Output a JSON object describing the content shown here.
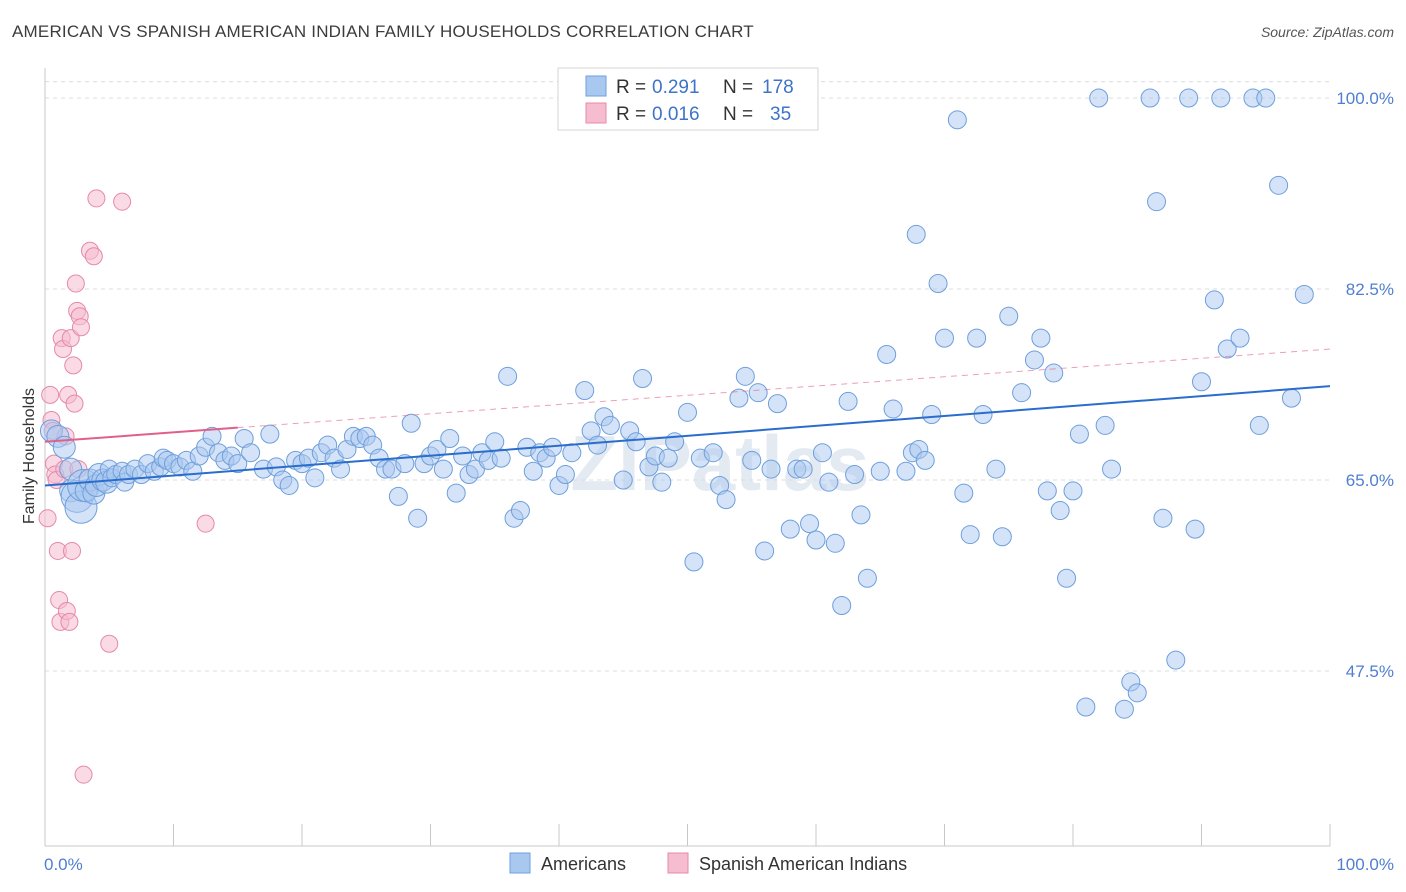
{
  "header": {
    "title": "AMERICAN VS SPANISH AMERICAN INDIAN FAMILY HOUSEHOLDS CORRELATION CHART",
    "source": "Source: ZipAtlas.com"
  },
  "legend": {
    "r_label": "R =",
    "n_label": "N =",
    "rows": [
      {
        "r": "0.291",
        "n": "178"
      },
      {
        "r": "0.016",
        "n": "35"
      }
    ]
  },
  "watermark": "ZIPatlas",
  "chart_data": {
    "type": "scatter",
    "xlabel": "",
    "ylabel": "Family Households",
    "xlim": [
      0,
      100
    ],
    "ylim": [
      33,
      102
    ],
    "x_tick_labels": [
      "0.0%",
      "100.0%"
    ],
    "y_ticks": [
      {
        "value": 100.0,
        "label": "100.0%"
      },
      {
        "value": 82.5,
        "label": "82.5%"
      },
      {
        "value": 65.0,
        "label": "65.0%"
      },
      {
        "value": 47.5,
        "label": "47.5%"
      }
    ],
    "grid": true,
    "legend_position": "top-center",
    "colors": {
      "americans_fill": "#a9c8f0",
      "americans_stroke": "#6e9fdc",
      "americans_line": "#2a6dcc",
      "sai_fill": "#f6bcd0",
      "sai_stroke": "#e58aa8",
      "sai_line": "#e0608a"
    },
    "series": [
      {
        "name": "Americans",
        "trend": [
          [
            0,
            64.5
          ],
          [
            100,
            73.6
          ]
        ],
        "points": [
          [
            0.5,
            69.5
          ],
          [
            1,
            69
          ],
          [
            1.5,
            68
          ],
          [
            2,
            64
          ],
          [
            2,
            66
          ],
          [
            2.5,
            63.5
          ],
          [
            2.8,
            62.5
          ],
          [
            3,
            64.5
          ],
          [
            3.2,
            64
          ],
          [
            3.5,
            65
          ],
          [
            3.8,
            63.8
          ],
          [
            4,
            64.5
          ],
          [
            4.2,
            65.5
          ],
          [
            4.5,
            65
          ],
          [
            4.8,
            64.8
          ],
          [
            5,
            66
          ],
          [
            5.2,
            65.2
          ],
          [
            5.5,
            65.5
          ],
          [
            6,
            65.8
          ],
          [
            6.2,
            64.8
          ],
          [
            6.5,
            65.5
          ],
          [
            7,
            66
          ],
          [
            7.5,
            65.5
          ],
          [
            8,
            66.5
          ],
          [
            8.5,
            65.8
          ],
          [
            9,
            66.2
          ],
          [
            9.2,
            67
          ],
          [
            9.5,
            66.8
          ],
          [
            10,
            66.5
          ],
          [
            10.5,
            66.2
          ],
          [
            11,
            66.8
          ],
          [
            11.5,
            65.8
          ],
          [
            12,
            67.2
          ],
          [
            12.5,
            68
          ],
          [
            13,
            69
          ],
          [
            13.5,
            67.5
          ],
          [
            14,
            66.8
          ],
          [
            14.5,
            67.2
          ],
          [
            15,
            66.5
          ],
          [
            15.5,
            68.8
          ],
          [
            16,
            67.5
          ],
          [
            17,
            66
          ],
          [
            17.5,
            69.2
          ],
          [
            18,
            66.2
          ],
          [
            18.5,
            65
          ],
          [
            19,
            64.5
          ],
          [
            19.5,
            66.8
          ],
          [
            20,
            66.5
          ],
          [
            20.5,
            67
          ],
          [
            21,
            65.2
          ],
          [
            21.5,
            67.5
          ],
          [
            22,
            68.2
          ],
          [
            22.5,
            67
          ],
          [
            23,
            66
          ],
          [
            23.5,
            67.8
          ],
          [
            24,
            69
          ],
          [
            24.5,
            68.8
          ],
          [
            25,
            69
          ],
          [
            25.5,
            68.2
          ],
          [
            26,
            67
          ],
          [
            26.5,
            66
          ],
          [
            27,
            66
          ],
          [
            27.5,
            63.5
          ],
          [
            28,
            66.5
          ],
          [
            28.5,
            70.2
          ],
          [
            29,
            61.5
          ],
          [
            29.5,
            66.5
          ],
          [
            30,
            67.2
          ],
          [
            30.5,
            67.8
          ],
          [
            31,
            66
          ],
          [
            31.5,
            68.8
          ],
          [
            32,
            63.8
          ],
          [
            32.5,
            67.2
          ],
          [
            33,
            65.5
          ],
          [
            33.5,
            66
          ],
          [
            34,
            67.5
          ],
          [
            34.5,
            66.8
          ],
          [
            35,
            68.5
          ],
          [
            35.5,
            67
          ],
          [
            36,
            74.5
          ],
          [
            36.5,
            61.5
          ],
          [
            37,
            62.2
          ],
          [
            37.5,
            68
          ],
          [
            38,
            65.8
          ],
          [
            38.5,
            67.5
          ],
          [
            39,
            67
          ],
          [
            39.5,
            68
          ],
          [
            40,
            64.5
          ],
          [
            40.5,
            65.5
          ],
          [
            41,
            67.5
          ],
          [
            42,
            73.2
          ],
          [
            42.5,
            69.5
          ],
          [
            43,
            68.2
          ],
          [
            43.5,
            70.8
          ],
          [
            44,
            70
          ],
          [
            45,
            65
          ],
          [
            45.5,
            69.5
          ],
          [
            46,
            68.5
          ],
          [
            46.5,
            74.3
          ],
          [
            47,
            66.2
          ],
          [
            47.5,
            67.2
          ],
          [
            48,
            64.8
          ],
          [
            48.5,
            67
          ],
          [
            49,
            68.5
          ],
          [
            50,
            71.2
          ],
          [
            50.5,
            57.5
          ],
          [
            51,
            67
          ],
          [
            52,
            67.5
          ],
          [
            52.5,
            64.5
          ],
          [
            53,
            63.2
          ],
          [
            54,
            72.5
          ],
          [
            54.5,
            74.5
          ],
          [
            55,
            66.8
          ],
          [
            55.5,
            73
          ],
          [
            56,
            58.5
          ],
          [
            56.5,
            66
          ],
          [
            57,
            72
          ],
          [
            58,
            60.5
          ],
          [
            58.5,
            66
          ],
          [
            59,
            66
          ],
          [
            59.5,
            61
          ],
          [
            60,
            59.5
          ],
          [
            60.5,
            67.5
          ],
          [
            61,
            64.8
          ],
          [
            61.5,
            59.2
          ],
          [
            62,
            53.5
          ],
          [
            62.5,
            72.2
          ],
          [
            63,
            65.5
          ],
          [
            63.5,
            61.8
          ],
          [
            64,
            56
          ],
          [
            65,
            65.8
          ],
          [
            65.5,
            76.5
          ],
          [
            66,
            71.5
          ],
          [
            67,
            65.8
          ],
          [
            67.5,
            67.5
          ],
          [
            67.8,
            87.5
          ],
          [
            68,
            67.8
          ],
          [
            68.5,
            66.8
          ],
          [
            69,
            71
          ],
          [
            69.5,
            83
          ],
          [
            70,
            78
          ],
          [
            71,
            98
          ],
          [
            71.5,
            63.8
          ],
          [
            72,
            60
          ],
          [
            72.5,
            78
          ],
          [
            73,
            71
          ],
          [
            74,
            66
          ],
          [
            74.5,
            59.8
          ],
          [
            75,
            80
          ],
          [
            76,
            73
          ],
          [
            77,
            76
          ],
          [
            77.5,
            78
          ],
          [
            78,
            64
          ],
          [
            78.5,
            74.8
          ],
          [
            79,
            62.2
          ],
          [
            79.5,
            56
          ],
          [
            80,
            64
          ],
          [
            80.5,
            69.2
          ],
          [
            81,
            44.2
          ],
          [
            82,
            100
          ],
          [
            82.5,
            70
          ],
          [
            83,
            66
          ],
          [
            84,
            44
          ],
          [
            84.5,
            46.5
          ],
          [
            85,
            45.5
          ],
          [
            86,
            100
          ],
          [
            86.5,
            90.5
          ],
          [
            87,
            61.5
          ],
          [
            88,
            48.5
          ],
          [
            89,
            100
          ],
          [
            89.5,
            60.5
          ],
          [
            90,
            74
          ],
          [
            91,
            81.5
          ],
          [
            91.5,
            100
          ],
          [
            92,
            77
          ],
          [
            93,
            78
          ],
          [
            94,
            100
          ],
          [
            94.5,
            70
          ],
          [
            95,
            100
          ],
          [
            96,
            92
          ],
          [
            97,
            72.5
          ],
          [
            98,
            82
          ]
        ]
      },
      {
        "name": "Spanish American Indians",
        "trend": [
          [
            0,
            68.5
          ],
          [
            15,
            69.8
          ]
        ],
        "trend_extended": [
          [
            15,
            69.8
          ],
          [
            100,
            77
          ]
        ],
        "points": [
          [
            0.2,
            61.5
          ],
          [
            0.4,
            72.8
          ],
          [
            0.5,
            70.5
          ],
          [
            0.6,
            69.5
          ],
          [
            0.7,
            66.5
          ],
          [
            0.8,
            65.5
          ],
          [
            0.9,
            65
          ],
          [
            1,
            58.5
          ],
          [
            1.1,
            54
          ],
          [
            1.2,
            52
          ],
          [
            1.3,
            78
          ],
          [
            1.4,
            77
          ],
          [
            1.5,
            66
          ],
          [
            1.6,
            69
          ],
          [
            1.7,
            53
          ],
          [
            1.8,
            72.8
          ],
          [
            1.9,
            52
          ],
          [
            2,
            78
          ],
          [
            2.1,
            58.5
          ],
          [
            2.2,
            75.5
          ],
          [
            2.3,
            72
          ],
          [
            2.4,
            83
          ],
          [
            2.5,
            80.5
          ],
          [
            2.6,
            66
          ],
          [
            2.7,
            80
          ],
          [
            2.8,
            79
          ],
          [
            3,
            38
          ],
          [
            3.5,
            86
          ],
          [
            3.8,
            85.5
          ],
          [
            4,
            90.8
          ],
          [
            5,
            50
          ],
          [
            6,
            90.5
          ],
          [
            12.5,
            61
          ]
        ]
      }
    ]
  }
}
